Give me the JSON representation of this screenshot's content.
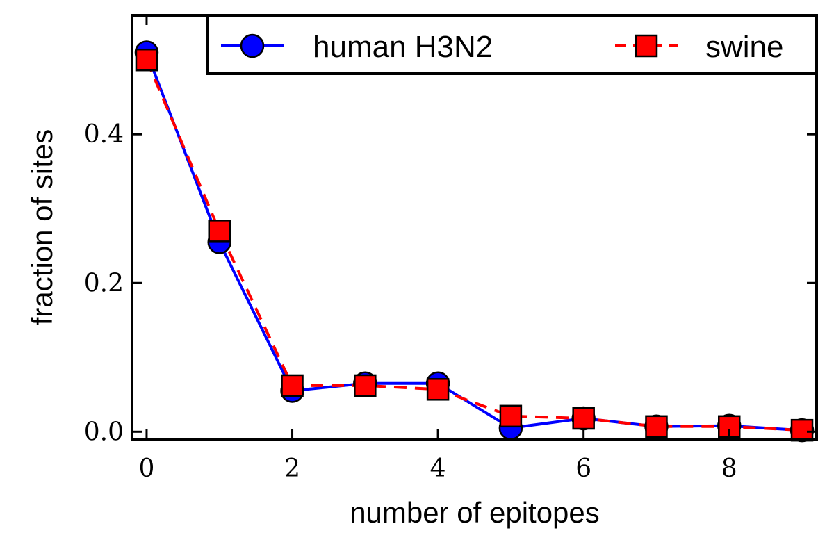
{
  "chart_data": {
    "type": "line",
    "xlabel": "number of epitopes",
    "ylabel": "fraction of sites",
    "xlim": [
      -0.2,
      9.2
    ],
    "ylim": [
      -0.01,
      0.56
    ],
    "xticks": [
      0,
      2,
      4,
      6,
      8
    ],
    "yticks": [
      0.0,
      0.2,
      0.4
    ],
    "xtick_labels": [
      "0",
      "2",
      "4",
      "6",
      "8"
    ],
    "ytick_labels": [
      "0.0",
      "0.2",
      "0.4"
    ],
    "grid": false,
    "legend_position": "top-right",
    "x": [
      0,
      1,
      2,
      3,
      4,
      5,
      6,
      7,
      8,
      9
    ],
    "series": [
      {
        "name": "human H3N2",
        "color": "#0000ff",
        "marker": "circle",
        "line_style": "solid",
        "values": [
          0.51,
          0.255,
          0.055,
          0.065,
          0.065,
          0.005,
          0.018,
          0.007,
          0.008,
          0.002
        ]
      },
      {
        "name": "swine",
        "color": "#ff0000",
        "marker": "square",
        "line_style": "dashed",
        "values": [
          0.5,
          0.27,
          0.062,
          0.062,
          0.057,
          0.021,
          0.018,
          0.007,
          0.007,
          0.002
        ]
      }
    ]
  }
}
